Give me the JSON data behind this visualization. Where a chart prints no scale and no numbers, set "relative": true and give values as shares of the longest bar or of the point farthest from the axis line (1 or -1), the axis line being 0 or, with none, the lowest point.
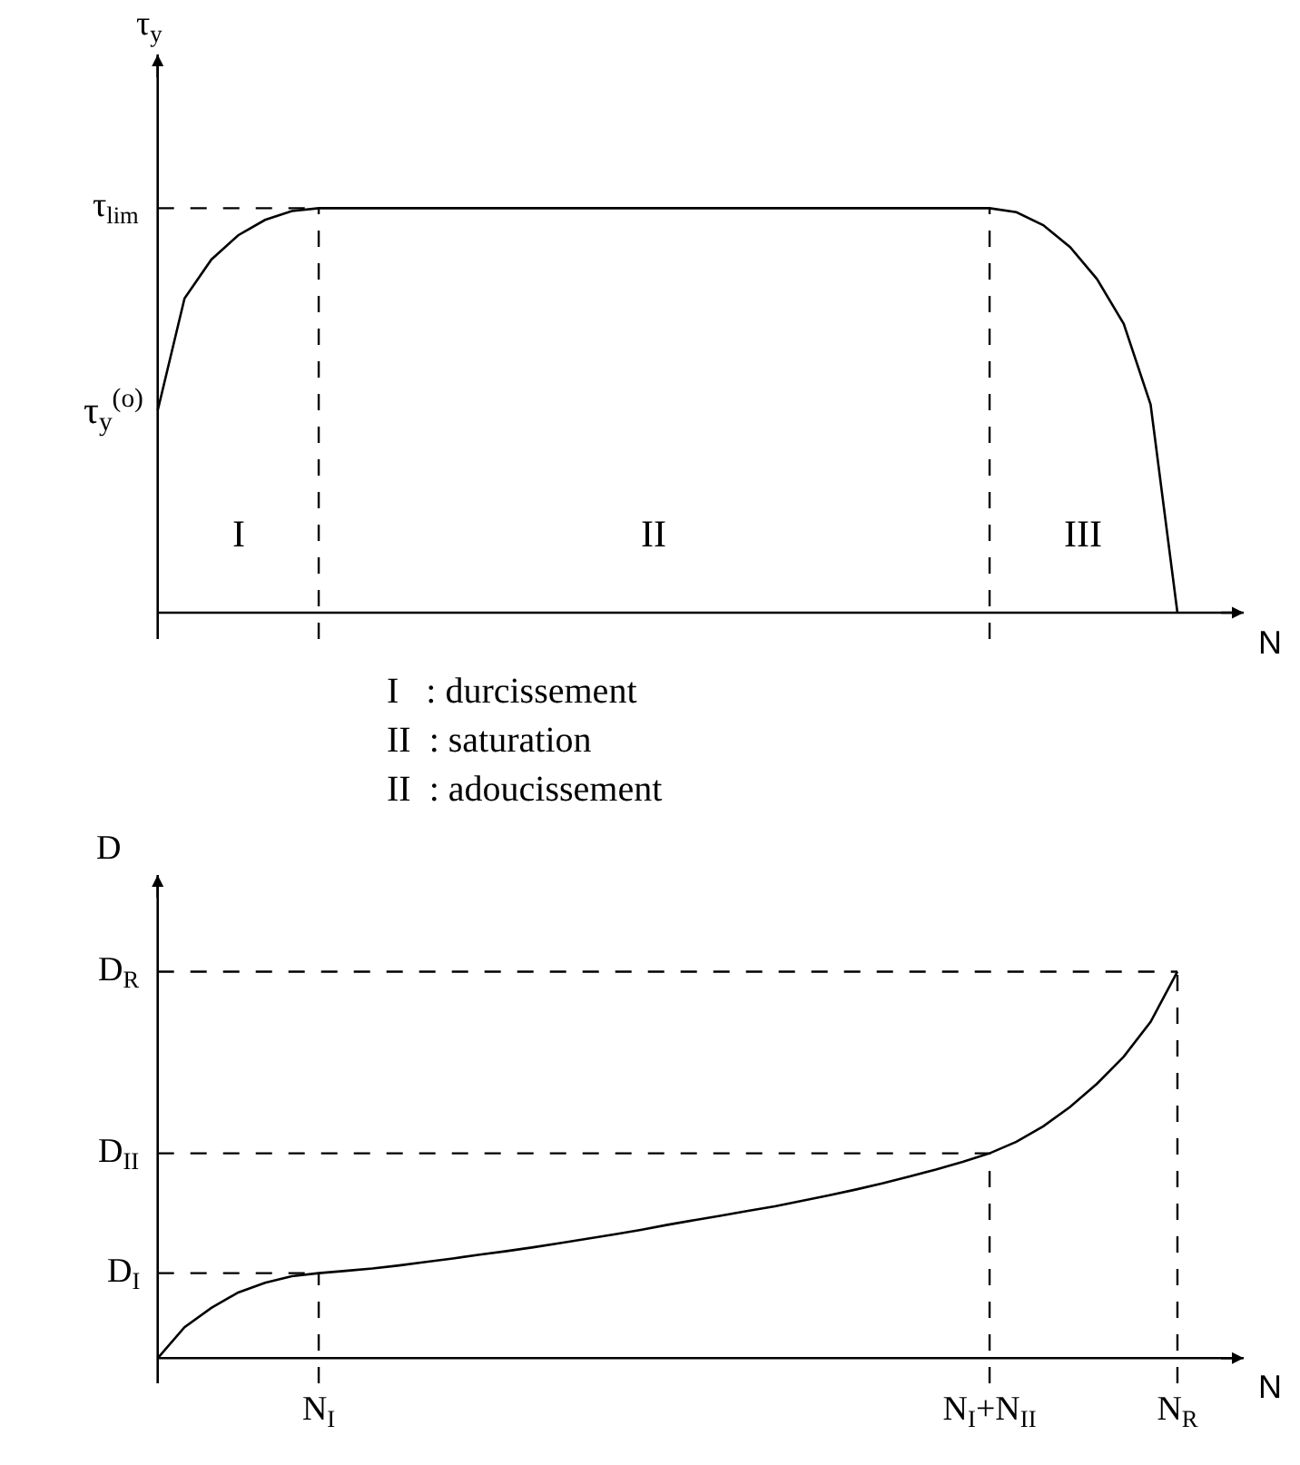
{
  "chart_data": [
    {
      "type": "line",
      "relative": true,
      "ylabel": "τ$_{y}$",
      "xlabel": "N",
      "tick_labels": false,
      "categories": [
        null,
        null,
        null,
        null,
        null,
        null,
        "N$_{I}$",
        null,
        null,
        null,
        null,
        null,
        null,
        null,
        null,
        null,
        null,
        null,
        null,
        null,
        null,
        null,
        null,
        null,
        null,
        null,
        null,
        null,
        null,
        null,
        null,
        "N$_{I}$+N$_{II}$",
        null,
        null,
        null,
        null,
        null,
        null,
        "N$_{R}$"
      ],
      "series": [
        {
          "color": "#000000",
          "values": [
            0.5,
            0.777,
            0.873,
            0.933,
            0.971,
            0.993,
            1,
            1,
            1,
            1,
            1,
            1,
            1,
            1,
            1,
            1,
            1,
            1,
            1,
            1,
            1,
            1,
            1,
            1,
            1,
            1,
            1,
            1,
            1,
            1,
            1,
            1,
            0.99,
            0.958,
            0.904,
            0.825,
            0.714,
            0.515,
            0
          ]
        }
      ],
      "ref_lines": [
        {
          "axis": "y",
          "value": 1,
          "label": "τ$_{lim}$",
          "line_style": "dashed"
        },
        {
          "axis": "x",
          "value": "N$_{I}$",
          "line_style": "dashed"
        },
        {
          "axis": "x",
          "value": "N$_{I}$+N$_{II}$",
          "line_style": "dashed"
        }
      ],
      "annotations": [
        "τ$_{y}$$^{(o)}$",
        "I",
        "II",
        "III",
        "I   : durcissement",
        "II  : saturation",
        "II  : adoucissement"
      ]
    },
    {
      "type": "line",
      "relative": true,
      "ylabel": "D",
      "xlabel": "N",
      "tick_labels": "x",
      "categories": [
        null,
        null,
        null,
        null,
        null,
        null,
        "N$_{I}$",
        null,
        null,
        null,
        null,
        null,
        null,
        null,
        null,
        null,
        null,
        null,
        null,
        null,
        null,
        null,
        null,
        null,
        null,
        null,
        null,
        null,
        null,
        null,
        null,
        "N$_{I}$+N$_{II}$",
        null,
        null,
        null,
        null,
        null,
        null,
        "N$_{R}$"
      ],
      "series": [
        {
          "color": "#000000",
          "values": [
            0,
            0.08,
            0.13,
            0.17,
            0.195,
            0.212,
            0.22,
            0.226,
            0.232,
            0.24,
            0.249,
            0.258,
            0.268,
            0.277,
            0.287,
            0.298,
            0.309,
            0.32,
            0.332,
            0.345,
            0.357,
            0.369,
            0.381,
            0.393,
            0.407,
            0.421,
            0.436,
            0.452,
            0.47,
            0.488,
            0.508,
            0.53,
            0.56,
            0.6,
            0.65,
            0.71,
            0.78,
            0.87,
            1
          ]
        }
      ],
      "ref_lines": [
        {
          "axis": "y",
          "value": 1,
          "label": "D$_{R}$",
          "line_style": "dashed"
        },
        {
          "axis": "y",
          "value": 0.53,
          "label": "D$_{II}$",
          "line_style": "dashed"
        },
        {
          "axis": "y",
          "value": 0.22,
          "label": "D$_{I}$",
          "line_style": "dashed"
        },
        {
          "axis": "x",
          "value": "N$_{I}$",
          "line_style": "dashed"
        },
        {
          "axis": "x",
          "value": "N$_{I}$+N$_{II}$",
          "line_style": "dashed"
        },
        {
          "axis": "x",
          "value": "N$_{R}$",
          "line_style": "dashed"
        }
      ]
    }
  ]
}
